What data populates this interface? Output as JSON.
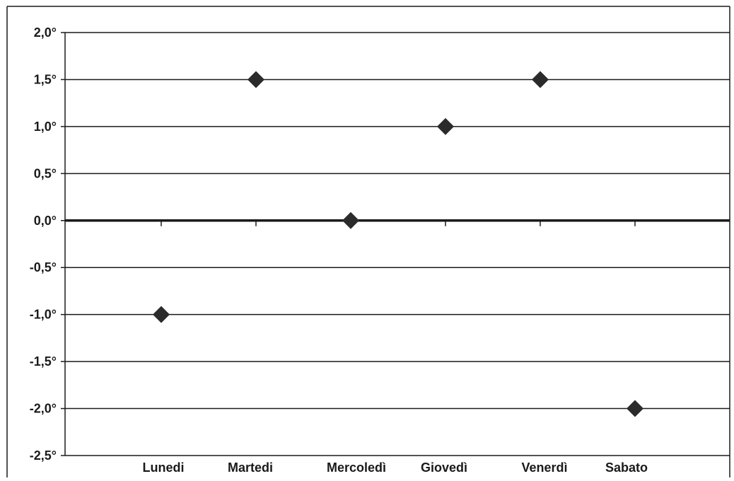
{
  "chart_data": {
    "type": "scatter",
    "categories": [
      "Lunedi",
      "Martedi",
      "Mercoledì",
      "Giovedì",
      "Venerdì",
      "Sabato"
    ],
    "series": [
      {
        "values": [
          -1.0,
          1.5,
          0.0,
          1.0,
          1.5,
          -2.0
        ]
      }
    ],
    "yticks": [
      "2,0°",
      "1,5°",
      "1,0°",
      "0,5°",
      "0,0°",
      "-0,5°",
      "-1,0°",
      "-1,5°",
      "-2,0°",
      "-2,5°"
    ],
    "ytick_values": [
      2.0,
      1.5,
      1.0,
      0.5,
      0.0,
      -0.5,
      -1.0,
      -1.5,
      -2.0,
      -2.5
    ],
    "ylim": [
      -2.5,
      2.0
    ],
    "grid": "horizontal",
    "marker": "diamond",
    "colors": {
      "marker": "#2b2b2b",
      "grid": "#1a1a1a",
      "zero_line": "#1a1a1a",
      "text": "#1a1a1a"
    }
  }
}
